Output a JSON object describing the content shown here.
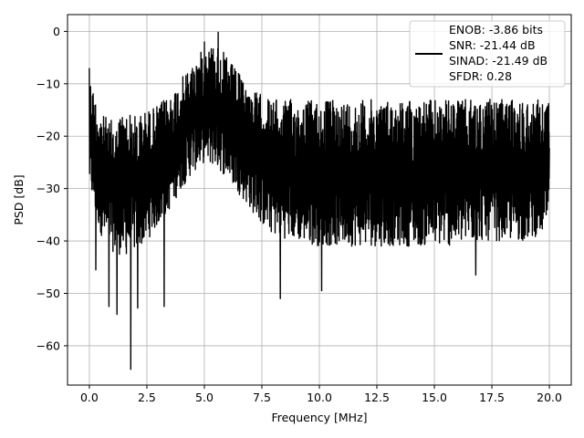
{
  "chart_data": {
    "type": "line",
    "title": "",
    "xlabel": "Frequency [MHz]",
    "ylabel": "PSD [dB]",
    "xlim": [
      -0.95,
      20.95
    ],
    "ylim": [
      -67.5,
      3.2
    ],
    "xticks": [
      0.0,
      2.5,
      5.0,
      7.5,
      10.0,
      12.5,
      15.0,
      17.5,
      20.0
    ],
    "xtick_labels": [
      "0.0",
      "2.5",
      "5.0",
      "7.5",
      "10.0",
      "12.5",
      "15.0",
      "17.5",
      "20.0"
    ],
    "yticks": [
      0,
      -10,
      -20,
      -30,
      -40,
      -50,
      -60
    ],
    "ytick_labels": [
      "0",
      "−10",
      "−20",
      "−30",
      "−40",
      "−50",
      "−60"
    ],
    "grid": true,
    "legend_position": "upper-right",
    "series": [
      {
        "name": "",
        "color": "#000000",
        "legend_lines": [
          "ENOB: -3.86 bits",
          "SNR: -21.44 dB",
          "SINAD: -21.49 dB",
          "SFDR: 0.28"
        ],
        "envelope_x": [
          0.0,
          0.3,
          0.6,
          1.0,
          1.5,
          2.0,
          2.5,
          3.0,
          3.5,
          4.0,
          4.5,
          5.0,
          5.5,
          6.0,
          6.5,
          7.0,
          7.5,
          8.0,
          9.0,
          10.0,
          11.0,
          12.0,
          13.0,
          14.0,
          15.0,
          16.0,
          17.0,
          18.0,
          19.0,
          20.0
        ],
        "envelope_upper": [
          -8,
          -13,
          -16,
          -17,
          -15,
          -16,
          -15,
          -14,
          -12,
          -9,
          -6,
          -3,
          -2,
          -5,
          -8,
          -11,
          -12,
          -13,
          -13,
          -13,
          -13,
          -13,
          -13,
          -13,
          -13,
          -13,
          -13,
          -13,
          -13,
          -13
        ],
        "envelope_lower": [
          -30,
          -36,
          -40,
          -42,
          -43,
          -42,
          -40,
          -37,
          -34,
          -30,
          -27,
          -25,
          -26,
          -28,
          -31,
          -34,
          -37,
          -39,
          -40,
          -41,
          -41,
          -41,
          -41,
          -41,
          -41,
          -41,
          -40,
          -40,
          -40,
          -38
        ],
        "points": [
          {
            "x": 0.0,
            "y": -7
          },
          {
            "x": 0.28,
            "y": -45.5
          },
          {
            "x": 0.85,
            "y": -52.5
          },
          {
            "x": 1.2,
            "y": -54
          },
          {
            "x": 1.8,
            "y": -64.5
          },
          {
            "x": 2.1,
            "y": -52.8
          },
          {
            "x": 3.25,
            "y": -52.5
          },
          {
            "x": 5.0,
            "y": -2
          },
          {
            "x": 5.6,
            "y": -0.2
          },
          {
            "x": 8.3,
            "y": -51
          },
          {
            "x": 10.1,
            "y": -49.5
          },
          {
            "x": 16.8,
            "y": -46.5
          }
        ]
      }
    ]
  }
}
